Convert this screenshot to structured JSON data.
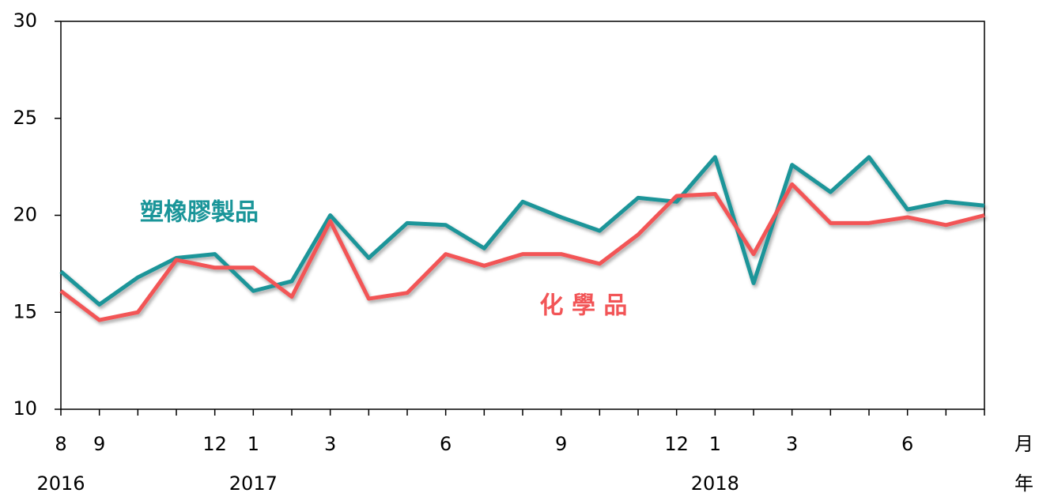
{
  "chart_data": {
    "type": "line",
    "categories": [
      "8",
      "9",
      null,
      null,
      "12",
      "1",
      null,
      "3",
      null,
      null,
      "6",
      null,
      null,
      "9",
      null,
      null,
      "12",
      "1",
      null,
      "3",
      null,
      null,
      "6",
      null,
      null
    ],
    "year_categories": [
      "2016",
      null,
      null,
      null,
      null,
      "2017",
      null,
      null,
      null,
      null,
      null,
      null,
      null,
      null,
      null,
      null,
      null,
      "2018",
      null,
      null,
      null,
      null,
      null,
      null,
      null
    ],
    "x_axis_labels": [
      "月",
      "年"
    ],
    "series": [
      {
        "name": "塑橡膠製品",
        "color": "#1a9599",
        "values": [
          17.1,
          15.4,
          16.8,
          17.8,
          18.0,
          16.1,
          16.6,
          20.0,
          17.8,
          19.6,
          19.5,
          18.3,
          20.7,
          19.9,
          19.2,
          20.9,
          20.7,
          23.0,
          16.5,
          22.6,
          21.2,
          23.0,
          20.3,
          20.7,
          20.5
        ]
      },
      {
        "name": "化 學 品",
        "color": "#f25557",
        "values": [
          16.1,
          14.6,
          15.0,
          17.7,
          17.3,
          17.3,
          15.8,
          19.7,
          15.7,
          16.0,
          18.0,
          17.4,
          18.0,
          18.0,
          17.5,
          19.0,
          21.0,
          21.1,
          18.0,
          21.6,
          19.6,
          19.6,
          19.9,
          19.5,
          20.0
        ]
      }
    ],
    "ylim": [
      10,
      30
    ],
    "yticks": [
      10,
      15,
      20,
      25,
      30
    ],
    "grid": false
  }
}
